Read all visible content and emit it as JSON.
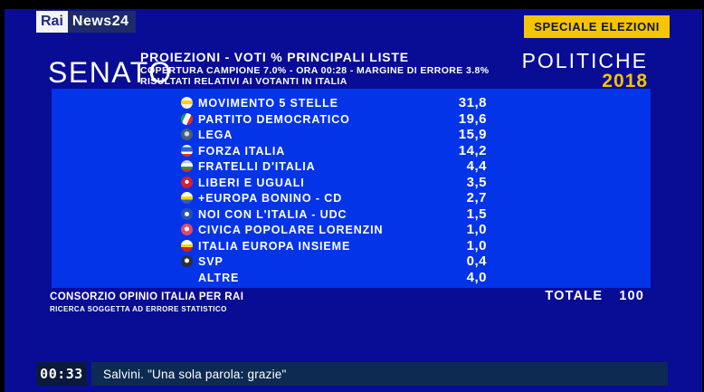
{
  "channel": {
    "logo_rai": "Rai",
    "logo_news": "News24"
  },
  "badge": {
    "label": "SPECIALE ELEZIONI"
  },
  "event": {
    "title": "POLITICHE",
    "year": "2018"
  },
  "header": {
    "chamber": "SENATO",
    "title": "PROIEZIONI - VOTI % PRINCIPALI LISTE",
    "subtitle1": "COPERTURA CAMPIONE 7.0% - ORA 00:28 - MARGINE DI ERRORE 3.8%",
    "subtitle2": "RISULTATI RELATIVI AI VOTANTI IN ITALIA"
  },
  "chart_data": {
    "type": "table",
    "title": "PROIEZIONI - VOTI % PRINCIPALI LISTE",
    "subtitle": "COPERTURA CAMPIONE 7.0% - ORA 00:28 - MARGINE DI ERRORE 3.8%",
    "note": "RISULTATI RELATIVI AI VOTANTI IN ITALIA",
    "categories": [
      "MOVIMENTO 5 STELLE",
      "PARTITO DEMOCRATICO",
      "LEGA",
      "FORZA ITALIA",
      "FRATELLI D'ITALIA",
      "LIBERI E UGUALI",
      "+EUROPA BONINO - CD",
      "NOI CON L'ITALIA - UDC",
      "CIVICA POPOLARE LORENZIN",
      "ITALIA EUROPA INSIEME",
      "SVP",
      "ALTRE"
    ],
    "values": [
      31.8,
      19.6,
      15.9,
      14.2,
      4.4,
      3.5,
      2.7,
      1.5,
      1.0,
      1.0,
      0.4,
      4.0
    ],
    "value_labels": [
      "31,8",
      "19,6",
      "15,9",
      "14,2",
      "4,4",
      "3,5",
      "2,7",
      "1,5",
      "1,0",
      "1,0",
      "0,4",
      "4,0"
    ],
    "icons": [
      "m5s",
      "pd",
      "lega",
      "fi",
      "fdi",
      "leu",
      "piueuropa",
      "nci",
      "cp",
      "iei",
      "svp",
      ""
    ],
    "total": 100
  },
  "results": {
    "total_label": "TOTALE",
    "total_value": "100"
  },
  "footer": {
    "source": "CONSORZIO OPINIO ITALIA PER RAI",
    "disclaimer": "RICERCA SOGGETTA AD ERRORE STATISTICO"
  },
  "ticker": {
    "time": "00:33",
    "headline": "Salvini. \"Una sola parola: grazie\""
  }
}
